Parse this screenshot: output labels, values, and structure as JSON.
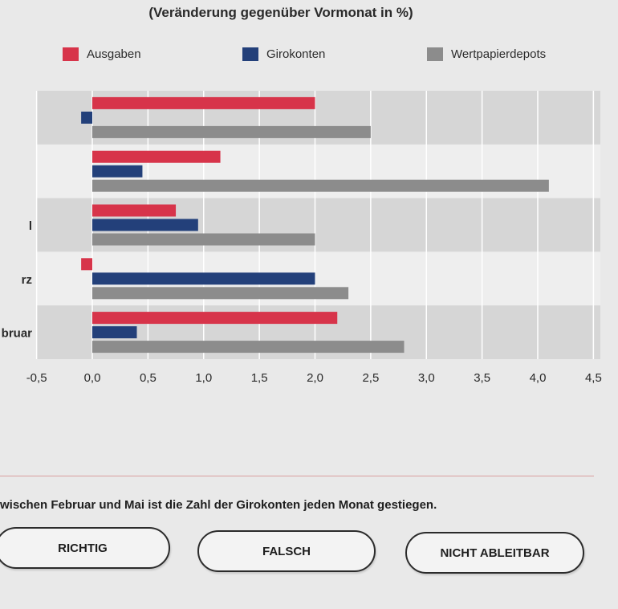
{
  "chart_data": {
    "type": "bar",
    "orientation": "horizontal",
    "subtitle": "(Veränderung gegenüber Vormonat in %)",
    "category_labels_visible": [
      "",
      "",
      "l",
      "rz",
      "bruar"
    ],
    "series": [
      {
        "name": "Ausgaben",
        "color": "#d7344a",
        "values": [
          2.0,
          1.15,
          0.75,
          -0.1,
          2.2
        ]
      },
      {
        "name": "Girokonten",
        "color": "#23407a",
        "values": [
          -0.1,
          0.45,
          0.95,
          2.0,
          0.4
        ]
      },
      {
        "name": "Wertpapierdepots",
        "color": "#8c8c8c",
        "values": [
          2.5,
          4.1,
          2.0,
          2.3,
          2.8
        ]
      }
    ],
    "xlim": [
      -0.5,
      4.5
    ],
    "x_ticks": [
      "-0,5",
      "0,0",
      "0,5",
      "1,0",
      "1,5",
      "2,0",
      "2,5",
      "3,0",
      "3,5",
      "4,0",
      "4,5"
    ],
    "grid": true,
    "legend_position": "top"
  },
  "legend": {
    "items": [
      {
        "label": "Ausgaben",
        "color": "#d7344a"
      },
      {
        "label": "Girokonten",
        "color": "#23407a"
      },
      {
        "label": "Wertpapierdepots",
        "color": "#8c8c8c"
      }
    ]
  },
  "question": {
    "text": "wischen Februar und Mai ist die Zahl der Girokonten jeden Monat gestiegen."
  },
  "answers": {
    "richtig": "RICHTIG",
    "falsch": "FALSCH",
    "nicht_ableitbar": "NICHT ABLEITBAR"
  }
}
